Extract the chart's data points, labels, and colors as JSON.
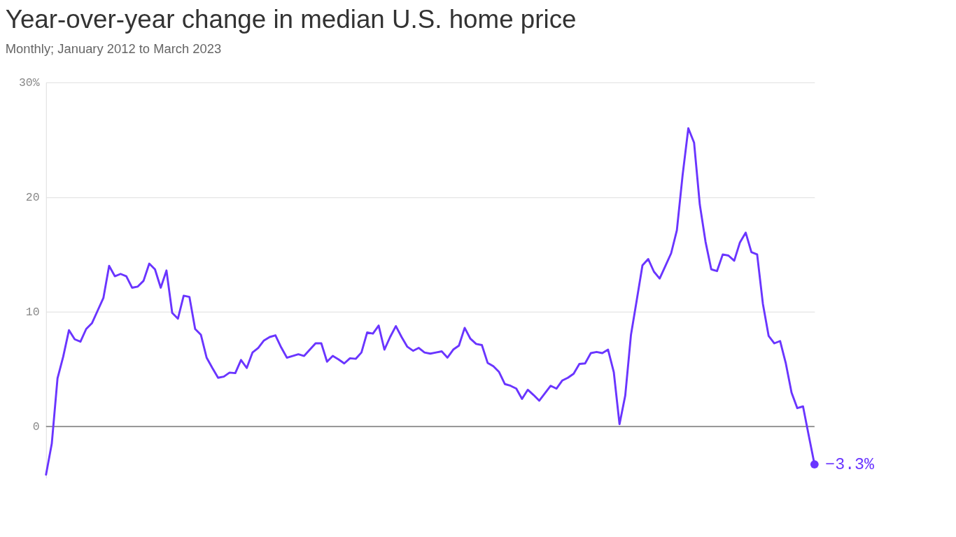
{
  "chart_data": {
    "type": "line",
    "title": "Year-over-year change in median U.S. home price",
    "subtitle": "Monthly; January 2012 to March 2023",
    "categories": [
      null,
      null,
      null,
      null,
      null,
      null,
      null,
      null,
      null,
      null,
      null,
      null,
      null,
      null,
      null,
      null,
      null,
      null,
      null,
      null,
      null,
      null,
      null,
      null,
      null,
      null,
      null,
      null,
      null,
      null,
      null,
      null,
      null,
      null,
      null,
      null,
      null,
      null,
      null,
      null,
      null,
      null,
      null,
      null,
      null,
      null,
      null,
      null,
      null,
      null,
      null,
      null,
      null,
      null,
      null,
      null,
      null,
      null,
      null,
      null,
      null,
      null,
      null,
      null,
      null,
      null,
      null,
      null,
      null,
      null,
      null,
      null,
      null,
      null,
      null,
      null,
      null,
      null,
      null,
      null,
      null,
      null,
      null,
      null,
      null,
      null,
      null,
      null,
      null,
      null,
      null,
      null,
      null,
      null,
      null,
      null,
      null,
      null,
      null,
      null,
      null,
      null,
      null,
      null,
      null,
      null,
      null,
      null,
      null,
      null,
      null,
      null,
      null,
      null,
      null,
      null,
      null,
      null,
      null,
      null,
      null,
      null,
      null,
      null,
      null,
      null,
      null,
      null,
      null,
      null,
      null,
      null,
      null,
      null,
      null
    ],
    "series": [
      {
        "color": "#6a35ff",
        "values": [
          -4.2,
          -1.5,
          4.2,
          6.1,
          8.4,
          7.6,
          7.4,
          8.5,
          9.0,
          10.1,
          11.2,
          14.0,
          13.1,
          13.3,
          13.1,
          12.1,
          12.2,
          12.7,
          14.2,
          13.7,
          12.1,
          13.6,
          9.9,
          9.4,
          11.4,
          11.3,
          8.5,
          8.0,
          6.0,
          5.1,
          4.25,
          4.35,
          4.7,
          4.65,
          5.8,
          5.1,
          6.45,
          6.85,
          7.5,
          7.8,
          7.95,
          6.9,
          6.0,
          6.15,
          6.3,
          6.15,
          6.7,
          7.25,
          7.25,
          5.65,
          6.15,
          5.85,
          5.5,
          5.95,
          5.9,
          6.45,
          8.2,
          8.1,
          8.8,
          6.7,
          7.8,
          8.75,
          7.8,
          6.95,
          6.6,
          6.85,
          6.45,
          6.35,
          6.45,
          6.55,
          6.0,
          6.7,
          7.05,
          8.6,
          7.65,
          7.2,
          7.1,
          5.55,
          5.25,
          4.75,
          3.7,
          3.55,
          3.3,
          2.4,
          3.2,
          2.75,
          2.25,
          2.9,
          3.55,
          3.3,
          4.0,
          4.25,
          4.6,
          5.45,
          5.5,
          6.4,
          6.5,
          6.4,
          6.7,
          4.75,
          0.2,
          2.7,
          8.0,
          11.0,
          14.05,
          14.6,
          13.5,
          12.9,
          14.0,
          15.1,
          17.1,
          21.9,
          26.0,
          24.75,
          19.35,
          16.1,
          13.7,
          13.55,
          15.0,
          14.9,
          14.45,
          16.05,
          16.9,
          15.2,
          15.0,
          10.7,
          7.9,
          7.25,
          7.45,
          5.5,
          2.95,
          1.6,
          1.75,
          -0.8,
          -3.3
        ]
      }
    ],
    "ylim": [
      -4.5,
      30
    ],
    "yticks": [
      {
        "value": 30,
        "label": "30%"
      },
      20,
      10,
      0
    ],
    "grid": "y",
    "tick_labels": "y",
    "marker": "none",
    "line_style": "solid",
    "ref_lines": [
      {
        "axis": "y",
        "value": 0,
        "label": null,
        "color": "#666666"
      }
    ],
    "annotations": [
      "−3.3%"
    ]
  }
}
